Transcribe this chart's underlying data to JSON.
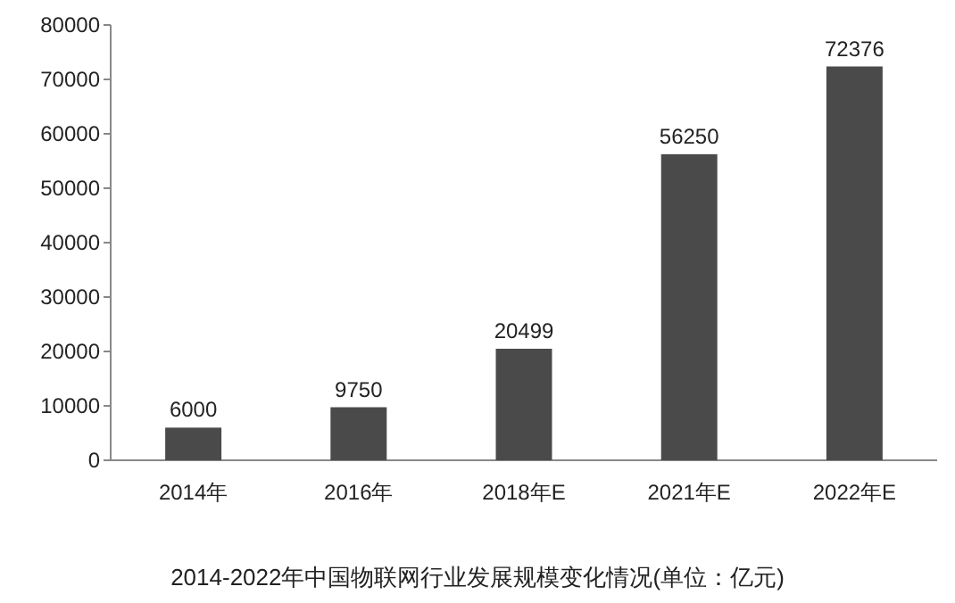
{
  "chart_data": {
    "type": "bar",
    "title": "2014-2022年中国物联网行业发展规模变化情况(单位：亿元)",
    "categories": [
      "2014年",
      "2016年",
      "2018年E",
      "2021年E",
      "2022年E"
    ],
    "values": [
      6000,
      9750,
      20499,
      56250,
      72376
    ],
    "color": "#4a4a4a",
    "ylim": [
      0,
      80000
    ],
    "yticks": [
      0,
      10000,
      20000,
      30000,
      40000,
      50000,
      60000,
      70000,
      80000
    ],
    "data_labels": true
  }
}
